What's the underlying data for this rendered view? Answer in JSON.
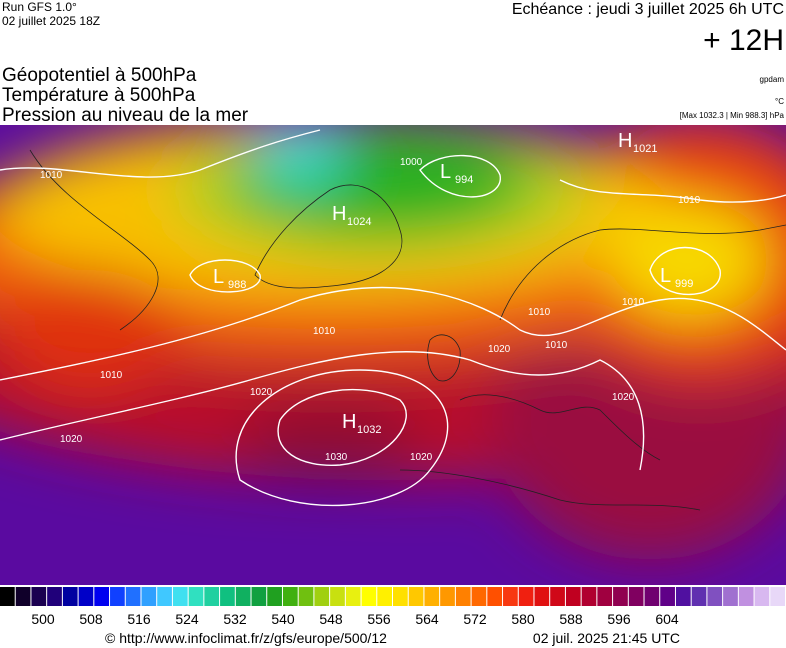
{
  "header": {
    "run": "Run GFS 1.0°",
    "date": "02 juillet 2025 18Z",
    "echeance": "Echéance : jeudi 3 juillet 2025 6h UTC",
    "lead": "+ 12H"
  },
  "layers": [
    "Géopotentiel à 500hPa",
    "Température à 500hPa",
    "Pression au niveau de la mer"
  ],
  "units": [
    "gpdam",
    "°C",
    "[Max 1032.3 | Min 988.3] hPa"
  ],
  "centers": [
    {
      "letter": "H",
      "value": 1024
    },
    {
      "letter": "L",
      "value": 994
    },
    {
      "letter": "L",
      "value": 988
    },
    {
      "letter": "H",
      "value": 1032
    },
    {
      "letter": "L",
      "value": 999
    },
    {
      "letter": "H",
      "value": 1021
    }
  ],
  "isobar_labels": [
    1010,
    1010,
    1010,
    1010,
    1020,
    1020,
    1030,
    1020,
    1010,
    1010,
    1020,
    1010,
    1000,
    1020
  ],
  "colorbar": [
    500,
    508,
    516,
    524,
    532,
    540,
    548,
    556,
    564,
    572,
    580,
    588,
    596,
    604
  ],
  "footer": {
    "url": "© http://www.infoclimat.fr/z/gfs/europe/500/12",
    "timestamp": "02 juil. 2025 21:45 UTC"
  }
}
